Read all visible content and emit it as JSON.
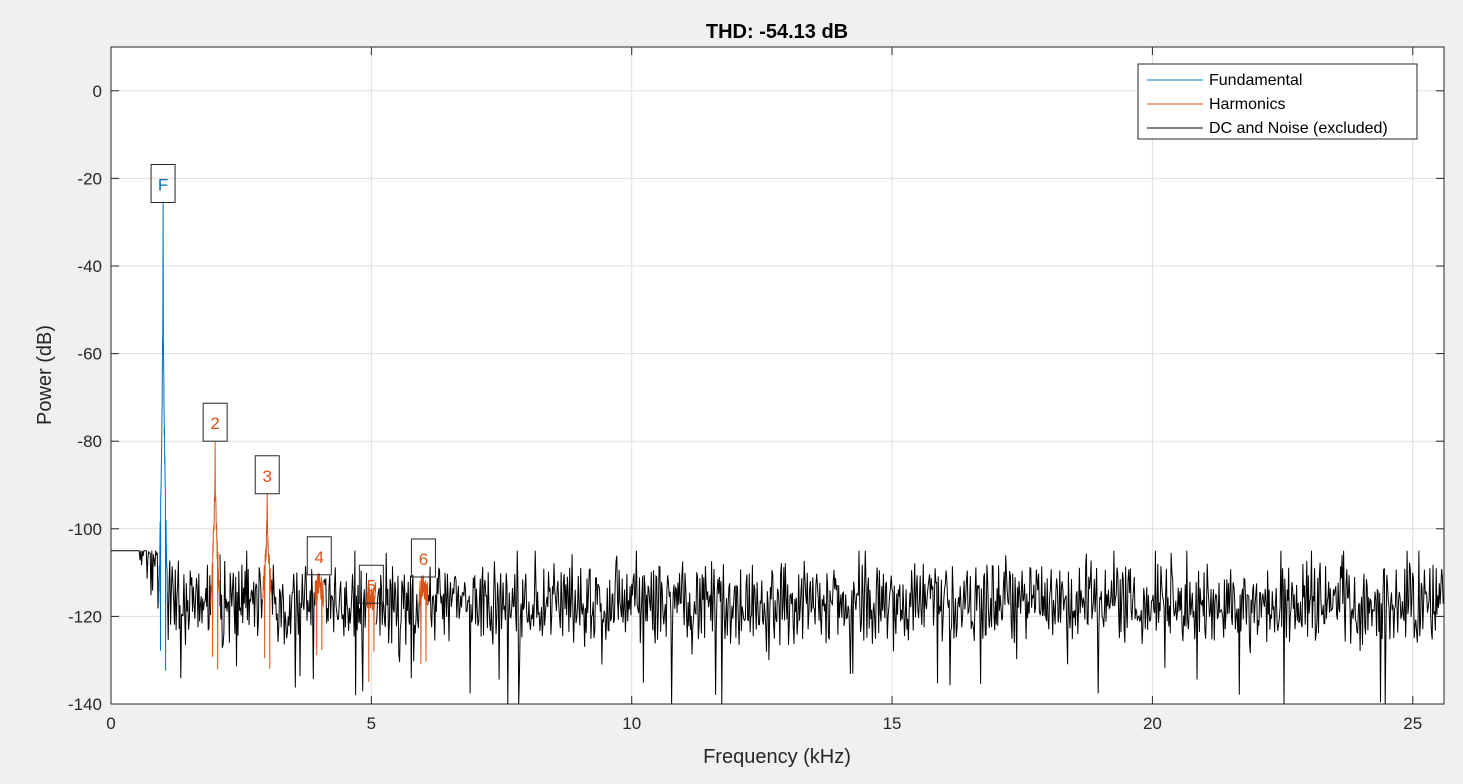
{
  "chart_data": {
    "type": "line",
    "title": "THD: -54.13 dB",
    "xlabel": "Frequency (kHz)",
    "ylabel": "Power (dB)",
    "xlim": [
      0,
      25.6
    ],
    "ylim": [
      -140,
      10
    ],
    "xticks": [
      0,
      5,
      10,
      15,
      20,
      25
    ],
    "yticks": [
      0,
      -20,
      -40,
      -60,
      -80,
      -100,
      -120,
      -140
    ],
    "xtick_labels": [
      "0",
      "5",
      "10",
      "15",
      "20",
      "25"
    ],
    "ytick_labels": [
      "0",
      "-20",
      "-40",
      "-60",
      "-80",
      "-100",
      "-120",
      "-140"
    ],
    "grid": true,
    "legend_position": "top-right",
    "series": [
      {
        "name": "Fundamental",
        "color": "#0072BD",
        "center": 1.0,
        "peak": -25.5
      },
      {
        "name": "Harmonics",
        "color": "#D95319",
        "harmonics": [
          {
            "center": 2.0,
            "peak": -80.0
          },
          {
            "center": 3.0,
            "peak": -92.0
          },
          {
            "center": 4.0,
            "peak": -110.5
          },
          {
            "center": 5.0,
            "peak": -117.0
          },
          {
            "center": 6.0,
            "peak": -111.0
          }
        ]
      },
      {
        "name": "DC and Noise (excluded)",
        "color": "#000000",
        "noise_mean": -117,
        "noise_range": [
          -140,
          -105
        ]
      }
    ],
    "annotations": [
      {
        "text": "F",
        "x": 1.0,
        "y": -25.5,
        "color": "#0072BD"
      },
      {
        "text": "2",
        "x": 2.0,
        "y": -80.0,
        "color": "#D95319"
      },
      {
        "text": "3",
        "x": 3.0,
        "y": -92.0,
        "color": "#D95319"
      },
      {
        "text": "4",
        "x": 4.0,
        "y": -110.5,
        "color": "#D95319"
      },
      {
        "text": "5",
        "x": 5.0,
        "y": -117.0,
        "color": "#D95319"
      },
      {
        "text": "6",
        "x": 6.0,
        "y": -111.0,
        "color": "#D95319"
      }
    ]
  },
  "legend": {
    "items": [
      {
        "label": "Fundamental",
        "color": "#0072BD"
      },
      {
        "label": "Harmonics",
        "color": "#D95319"
      },
      {
        "label": "DC and Noise (excluded)",
        "color": "#000000"
      }
    ]
  }
}
